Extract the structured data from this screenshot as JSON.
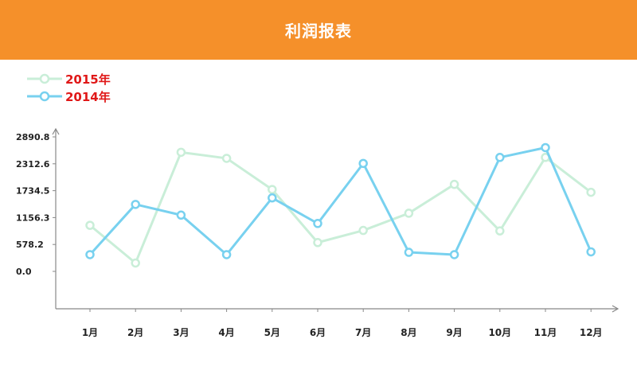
{
  "header": {
    "title": "利润报表"
  },
  "legend": [
    {
      "label": "2015年",
      "color": "#c9eed8",
      "icon": "circle-marker-icon"
    },
    {
      "label": "2014年",
      "color": "#78d1ef",
      "icon": "circle-marker-icon"
    }
  ],
  "colors": {
    "header_bg": "#f5902a",
    "legend_text": "#e01818",
    "axis": "#888888"
  },
  "chart_data": {
    "type": "line",
    "title": "利润报表",
    "categories": [
      "1月",
      "2月",
      "3月",
      "4月",
      "5月",
      "6月",
      "7月",
      "8月",
      "9月",
      "10月",
      "11月",
      "12月"
    ],
    "y_ticks": [
      "0.0",
      "578.2",
      "1156.3",
      "1734.5",
      "2312.6",
      "2890.8"
    ],
    "ylim": [
      0,
      2890.8
    ],
    "grid": false,
    "legend_position": "top-left",
    "series": [
      {
        "name": "2015年",
        "color": "#c9eed8",
        "values": [
          990,
          180,
          2560,
          2430,
          1760,
          620,
          880,
          1250,
          1870,
          870,
          2450,
          1700
        ]
      },
      {
        "name": "2014年",
        "color": "#78d1ef",
        "values": [
          360,
          1440,
          1210,
          360,
          1580,
          1030,
          2320,
          410,
          360,
          2450,
          2660,
          420
        ]
      }
    ]
  }
}
